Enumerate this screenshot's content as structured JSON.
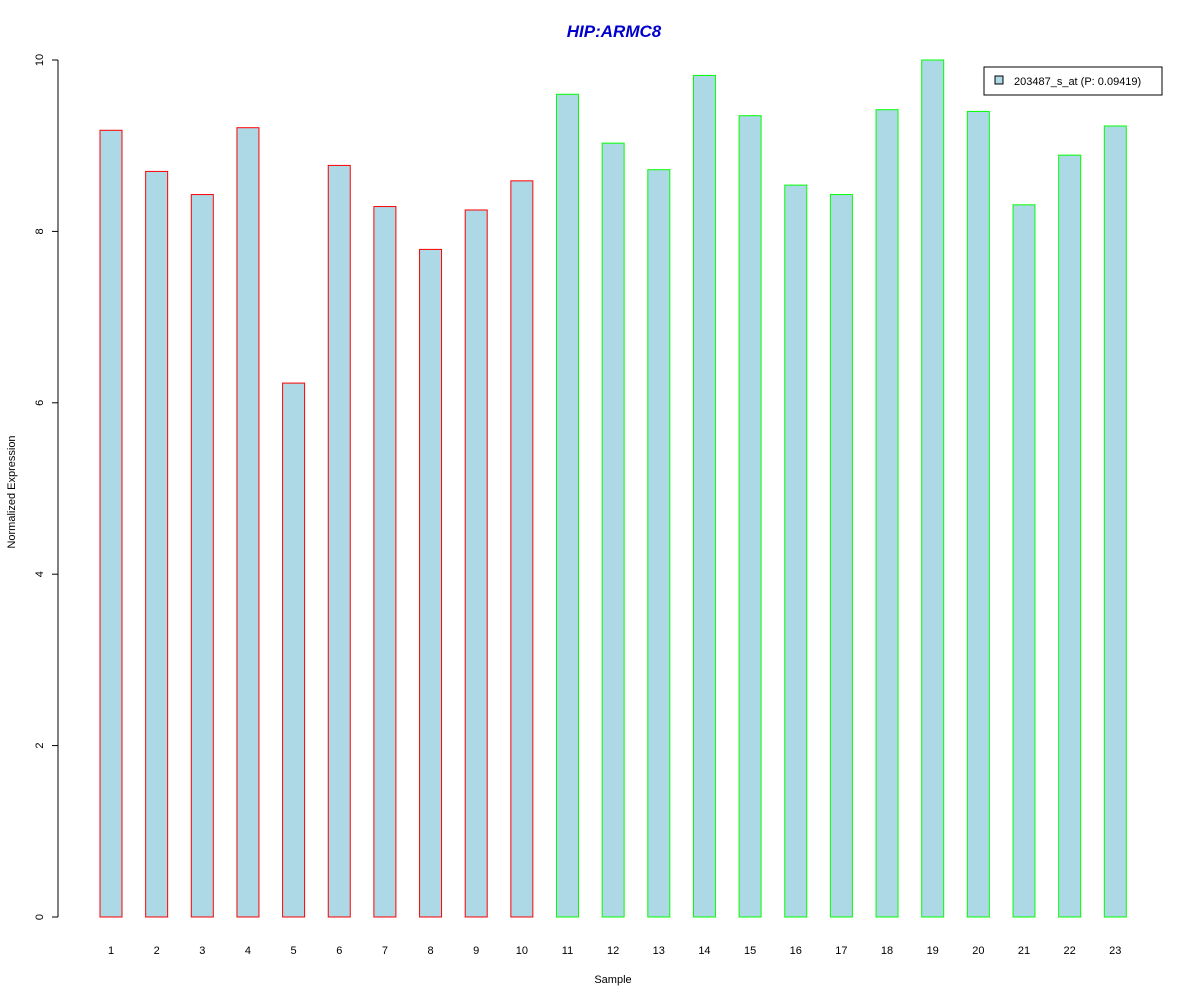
{
  "chart_data": {
    "type": "bar",
    "title": "HIP:ARMC8",
    "xlabel": "Sample",
    "ylabel": "Normalized Expression",
    "categories": [
      "1",
      "2",
      "3",
      "4",
      "5",
      "6",
      "7",
      "8",
      "9",
      "10",
      "11",
      "12",
      "13",
      "14",
      "15",
      "16",
      "17",
      "18",
      "19",
      "20",
      "21",
      "22",
      "23"
    ],
    "series": [
      {
        "name": "203487_s_at (P: 0.09419)",
        "values": [
          9.18,
          8.7,
          8.43,
          9.21,
          6.23,
          8.77,
          8.29,
          7.79,
          8.25,
          8.59,
          9.6,
          9.03,
          8.72,
          9.82,
          9.35,
          8.54,
          8.43,
          9.42,
          10.0,
          9.4,
          8.31,
          8.89,
          9.23
        ]
      }
    ],
    "groups": [
      {
        "samples": [
          "1",
          "2",
          "3",
          "4",
          "5",
          "6",
          "7",
          "8",
          "9",
          "10"
        ],
        "border_color": "#ff0000"
      },
      {
        "samples": [
          "11",
          "12",
          "13",
          "14",
          "15",
          "16",
          "17",
          "18",
          "19",
          "20",
          "21",
          "22",
          "23"
        ],
        "border_color": "#00ff00"
      }
    ],
    "ylim": [
      0,
      10
    ],
    "yticks": [
      0,
      2,
      4,
      6,
      8,
      10
    ],
    "grid": false,
    "legend_position": "top-right"
  },
  "colors": {
    "bar_fill": "#add8e6",
    "title": "#0000cc",
    "axis": "#000000"
  }
}
